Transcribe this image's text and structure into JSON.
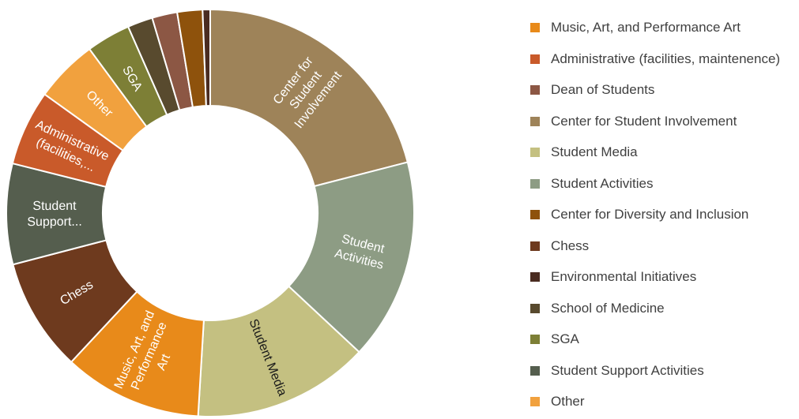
{
  "chart_data": {
    "type": "donut",
    "title": "",
    "legend_position": "right",
    "slices": [
      {
        "name": "Center for Student Involvement",
        "label": [
          "Center for",
          "Student",
          "Involvement"
        ],
        "value": 21.0,
        "color": "#9e8359",
        "label_color": "#ffffff"
      },
      {
        "name": "Student Activities",
        "label": [
          "Student",
          "Activities"
        ],
        "value": 16.0,
        "color": "#8d9c84",
        "label_color": "#ffffff"
      },
      {
        "name": "Student Media",
        "label": [
          "Student Media"
        ],
        "value": 14.0,
        "color": "#c4c081",
        "label_color": "#1a1a1a"
      },
      {
        "name": "Music, Art, and Performance Art",
        "label": [
          "Music, Art, and",
          "Performance",
          "Art"
        ],
        "value": 11.0,
        "color": "#e88a1a",
        "label_color": "#ffffff"
      },
      {
        "name": "Chess",
        "label": [
          "Chess"
        ],
        "value": 9.0,
        "color": "#6e3a1e",
        "label_color": "#ffffff"
      },
      {
        "name": "Student Support Activities",
        "label": [
          "Student",
          "Support..."
        ],
        "value": 8.0,
        "color": "#555e4e",
        "label_color": "#ffffff"
      },
      {
        "name": "Administrative (facilities, maintenence)",
        "label": [
          "Administrative",
          "(facilities,..."
        ],
        "value": 6.0,
        "color": "#c95a2a",
        "label_color": "#ffffff"
      },
      {
        "name": "Other",
        "label": [
          "Other"
        ],
        "value": 5.0,
        "color": "#f1a13e",
        "label_color": "#ffffff"
      },
      {
        "name": "SGA",
        "label": [
          "SGA"
        ],
        "value": 3.5,
        "color": "#7d7f36",
        "label_color": "#ffffff"
      },
      {
        "name": "School of Medicine",
        "label": [],
        "value": 2.0,
        "color": "#584a2e",
        "label_color": "#ffffff"
      },
      {
        "name": "Dean of Students",
        "label": [],
        "value": 2.0,
        "color": "#8c5744",
        "label_color": "#ffffff"
      },
      {
        "name": "Center for Diversity and Inclusion",
        "label": [],
        "value": 2.0,
        "color": "#8e520c",
        "label_color": "#ffffff"
      },
      {
        "name": "Environmental Initiatives",
        "label": [],
        "value": 0.6,
        "color": "#4a2c21",
        "label_color": "#ffffff"
      }
    ],
    "legend": [
      {
        "label": "Music, Art, and Performance Art",
        "color": "#e88a1a"
      },
      {
        "label": "Administrative (facilities, maintenence)",
        "color": "#c95a2a"
      },
      {
        "label": "Dean of Students",
        "color": "#8c5744"
      },
      {
        "label": "Center for Student Involvement",
        "color": "#9e8359"
      },
      {
        "label": "Student Media",
        "color": "#c4c081"
      },
      {
        "label": "Student Activities",
        "color": "#8d9c84"
      },
      {
        "label": "Center for Diversity and Inclusion",
        "color": "#8e520c"
      },
      {
        "label": "Chess",
        "color": "#6e3a1e"
      },
      {
        "label": "Environmental Initiatives",
        "color": "#4a2c21"
      },
      {
        "label": "School of Medicine",
        "color": "#584a2e"
      },
      {
        "label": "SGA",
        "color": "#7d7f36"
      },
      {
        "label": "Student Support Activities",
        "color": "#555e4e"
      },
      {
        "label": "Other",
        "color": "#f1a13e"
      }
    ]
  }
}
